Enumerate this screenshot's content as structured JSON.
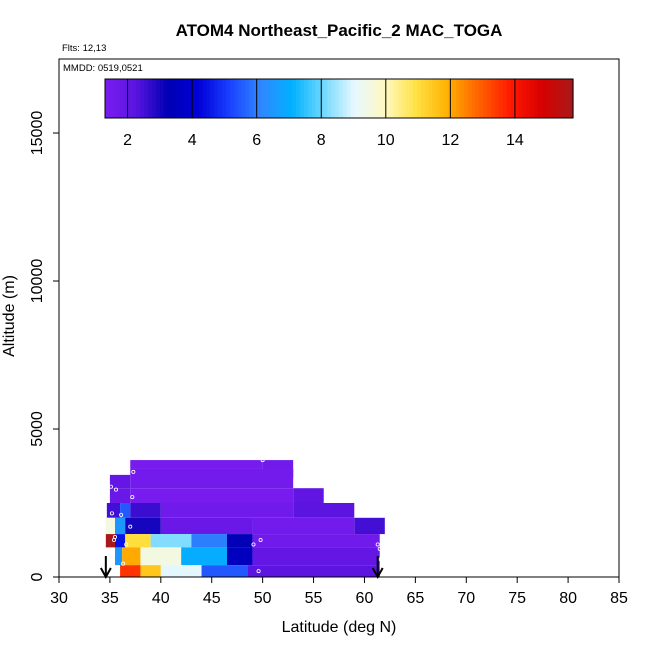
{
  "chart_data": {
    "type": "heatmap",
    "title": "ATOM4 Northeast_Pacific_2 MAC_TOGA",
    "flights_label": "Flts: 12,13",
    "dates_label": "MMDD: 0519,0521",
    "xlabel": "Latitude (deg N)",
    "ylabel": "Altitude (m)",
    "xlim": [
      30,
      85
    ],
    "ylim": [
      0,
      17500
    ],
    "xticks": [
      "30",
      "35",
      "40",
      "45",
      "50",
      "55",
      "60",
      "65",
      "70",
      "75",
      "80",
      "85"
    ],
    "yticks": [
      "0",
      "5000",
      "10000",
      "15000"
    ],
    "colorbar": {
      "range": [
        1.3,
        15.8
      ],
      "ticks": [
        "2",
        "4",
        "6",
        "8",
        "10",
        "12",
        "14"
      ],
      "colors": [
        "#7a1cf0",
        "#5a14e0",
        "#0000b4",
        "#0000d8",
        "#1a40ff",
        "#2f88ff",
        "#00b0ff",
        "#70d8ff",
        "#e8f8ff",
        "#fff8c0",
        "#ffe040",
        "#ffb000",
        "#ff6000",
        "#ff1800",
        "#d80000",
        "#a81a1a"
      ],
      "position": "top"
    },
    "cells": [
      {
        "lat": [
          37,
          50
        ],
        "alt": [
          3650,
          3950
        ],
        "value": 1.4
      },
      {
        "lat": [
          50,
          53
        ],
        "alt": [
          3350,
          3950
        ],
        "value": 1.6
      },
      {
        "lat": [
          35,
          37
        ],
        "alt": [
          3000,
          3450
        ],
        "value": 2.0
      },
      {
        "lat": [
          37,
          53
        ],
        "alt": [
          3000,
          3650
        ],
        "value": 1.5
      },
      {
        "lat": [
          53,
          56
        ],
        "alt": [
          2500,
          3000
        ],
        "value": 2.1
      },
      {
        "lat": [
          35,
          37
        ],
        "alt": [
          2500,
          3000
        ],
        "value": 1.8
      },
      {
        "lat": [
          37,
          53
        ],
        "alt": [
          2500,
          3000
        ],
        "value": 1.4
      },
      {
        "lat": [
          53,
          59
        ],
        "alt": [
          2000,
          2500
        ],
        "value": 2.2
      },
      {
        "lat": [
          34.7,
          36
        ],
        "alt": [
          2000,
          2500
        ],
        "value": 2.5
      },
      {
        "lat": [
          36,
          37
        ],
        "alt": [
          2000,
          2500
        ],
        "value": 5.5
      },
      {
        "lat": [
          37,
          40
        ],
        "alt": [
          2000,
          2500
        ],
        "value": 2.6
      },
      {
        "lat": [
          40,
          53
        ],
        "alt": [
          2000,
          2500
        ],
        "value": 1.6
      },
      {
        "lat": [
          59,
          62
        ],
        "alt": [
          1450,
          2000
        ],
        "value": 2.5
      },
      {
        "lat": [
          34.6,
          35.5
        ],
        "alt": [
          1450,
          2000
        ],
        "value": 9.5
      },
      {
        "lat": [
          35.5,
          36.5
        ],
        "alt": [
          1450,
          2000
        ],
        "value": 6.5
      },
      {
        "lat": [
          36.5,
          40
        ],
        "alt": [
          1450,
          2000
        ],
        "value": 3.0
      },
      {
        "lat": [
          40,
          49
        ],
        "alt": [
          1450,
          2000
        ],
        "value": 1.8
      },
      {
        "lat": [
          49,
          59
        ],
        "alt": [
          1450,
          2000
        ],
        "value": 1.5
      },
      {
        "lat": [
          34.6,
          35.5
        ],
        "alt": [
          1000,
          1450
        ],
        "value": 15.8
      },
      {
        "lat": [
          35.5,
          36.5
        ],
        "alt": [
          1000,
          1450
        ],
        "value": 4.5
      },
      {
        "lat": [
          36.5,
          39
        ],
        "alt": [
          1000,
          1450
        ],
        "value": 11.0
      },
      {
        "lat": [
          39,
          43
        ],
        "alt": [
          1000,
          1450
        ],
        "value": 8.2
      },
      {
        "lat": [
          43,
          46.5
        ],
        "alt": [
          1000,
          1450
        ],
        "value": 6.0
      },
      {
        "lat": [
          46.5,
          49
        ],
        "alt": [
          1000,
          1450
        ],
        "value": 3.2
      },
      {
        "lat": [
          49,
          61.5
        ],
        "alt": [
          1000,
          1450
        ],
        "value": 1.6
      },
      {
        "lat": [
          35.5,
          36.2
        ],
        "alt": [
          400,
          1000
        ],
        "value": 6.5
      },
      {
        "lat": [
          36.2,
          38
        ],
        "alt": [
          400,
          1000
        ],
        "value": 12.0
      },
      {
        "lat": [
          38,
          42
        ],
        "alt": [
          400,
          1000
        ],
        "value": 9.5
      },
      {
        "lat": [
          42,
          46.5
        ],
        "alt": [
          400,
          1000
        ],
        "value": 7.0
      },
      {
        "lat": [
          46.5,
          49
        ],
        "alt": [
          400,
          1000
        ],
        "value": 3.5
      },
      {
        "lat": [
          49,
          61.5
        ],
        "alt": [
          400,
          1000
        ],
        "value": 2.0
      },
      {
        "lat": [
          36,
          38
        ],
        "alt": [
          0,
          400
        ],
        "value": 13.5
      },
      {
        "lat": [
          38,
          40
        ],
        "alt": [
          0,
          400
        ],
        "value": 11.5
      },
      {
        "lat": [
          40,
          44
        ],
        "alt": [
          0,
          400
        ],
        "value": 9.0
      },
      {
        "lat": [
          44,
          48.5
        ],
        "alt": [
          0,
          400
        ],
        "value": 5.5
      },
      {
        "lat": [
          48.5,
          61.5
        ],
        "alt": [
          0,
          400
        ],
        "value": 2.2
      }
    ],
    "points": [
      {
        "lat": 35.1,
        "alt": 3050
      },
      {
        "lat": 35.6,
        "alt": 2950
      },
      {
        "lat": 37.3,
        "alt": 3550
      },
      {
        "lat": 37.2,
        "alt": 2700
      },
      {
        "lat": 35.2,
        "alt": 2150
      },
      {
        "lat": 36.1,
        "alt": 2100
      },
      {
        "lat": 37.0,
        "alt": 1700
      },
      {
        "lat": 35.5,
        "alt": 1350
      },
      {
        "lat": 36.6,
        "alt": 1100
      },
      {
        "lat": 35.4,
        "alt": 1250
      },
      {
        "lat": 36.3,
        "alt": 450
      },
      {
        "lat": 50.0,
        "alt": 3950
      },
      {
        "lat": 49.1,
        "alt": 1100
      },
      {
        "lat": 49.8,
        "alt": 1250
      },
      {
        "lat": 49.6,
        "alt": 200
      },
      {
        "lat": 61.3,
        "alt": 1100
      },
      {
        "lat": 61.5,
        "alt": 950
      },
      {
        "lat": 61.6,
        "alt": 600
      }
    ],
    "arrows": [
      {
        "lat": 34.6,
        "direction": "down"
      },
      {
        "lat": 61.3,
        "direction": "down"
      }
    ]
  }
}
